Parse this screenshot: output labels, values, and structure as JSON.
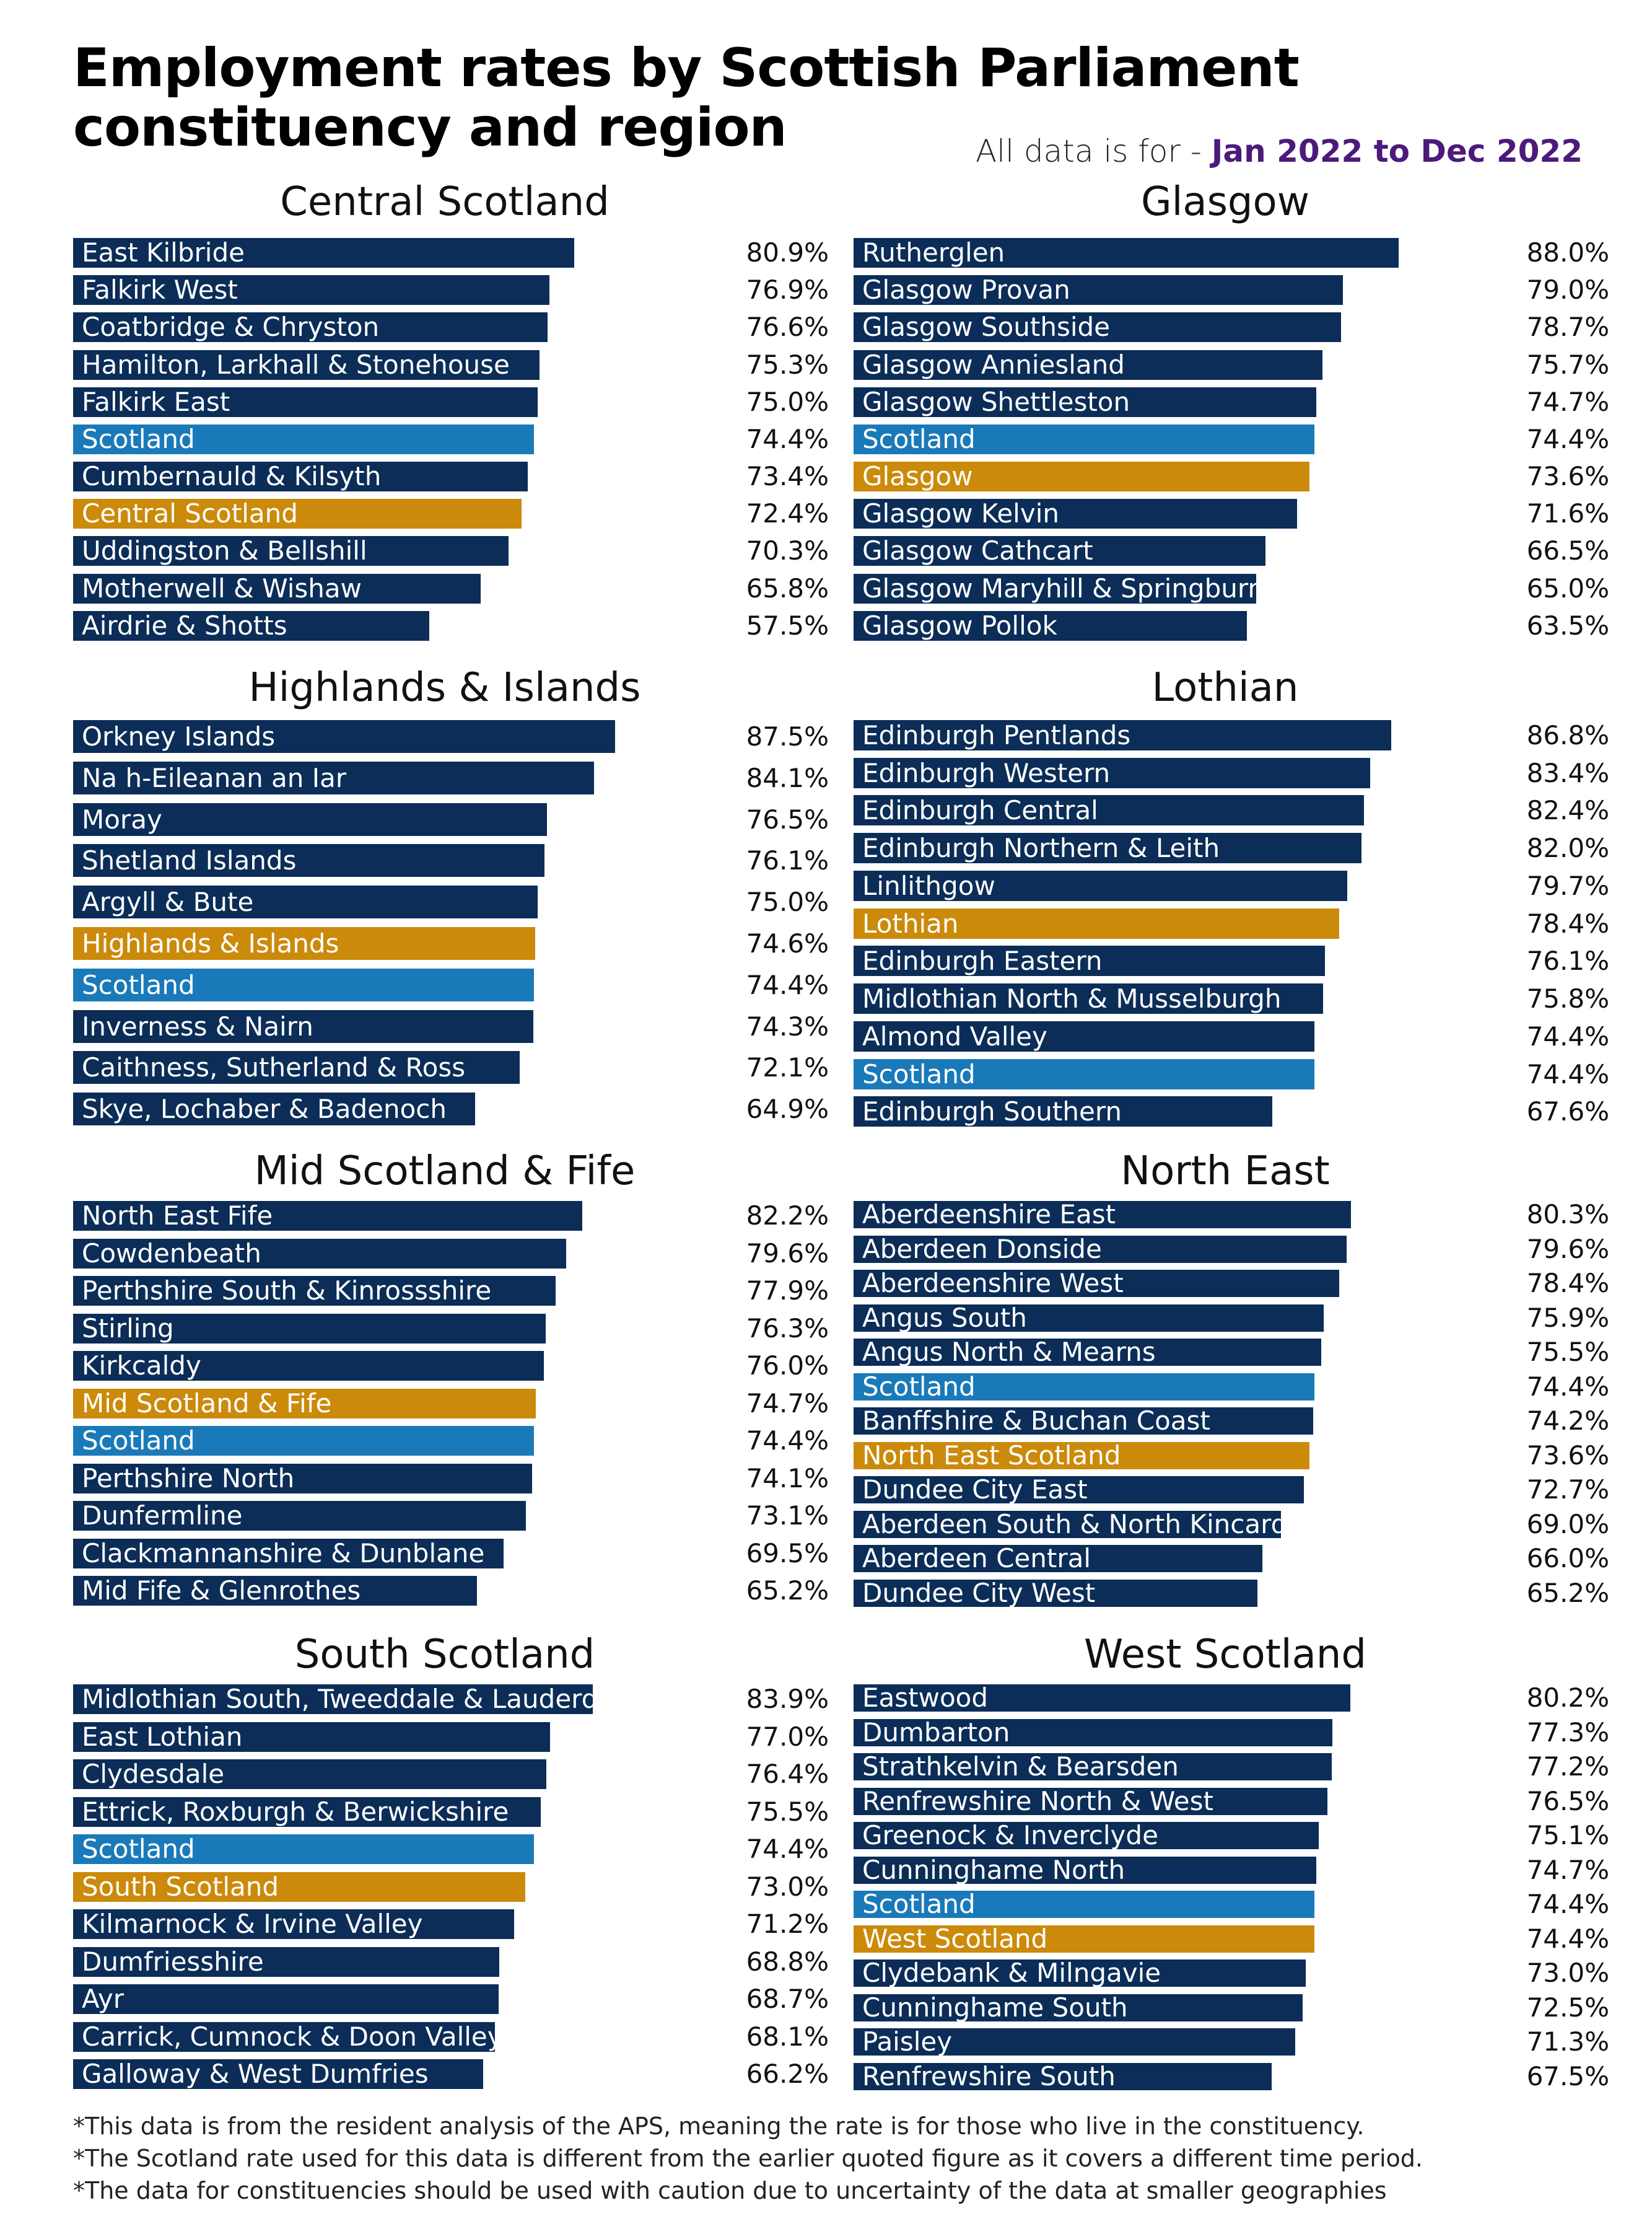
{
  "title": "Employment rates by Scottish Parliament constituency and region",
  "period_prefix": "All data is for -",
  "period_range": "Jan 2022 to Dec 2022",
  "colors": {
    "constituency": "#0b2d57",
    "scotland": "#1a7ab9",
    "region": "#cc8a0a"
  },
  "notes": [
    "*This data is from the resident analysis of the APS, meaning the rate is for those who live in the constituency.",
    "*The Scotland rate used for this data is different from the earlier quoted figure as it covers a different time period.",
    "*The data for constituencies should be used with caution due to uncertainty of the data at smaller geographies"
  ],
  "chart_data": [
    {
      "type": "bar",
      "title": "Central Scotland",
      "xlim": [
        0,
        100
      ],
      "unit": "%",
      "items": [
        {
          "label": "East Kilbride",
          "value": 80.9,
          "display": "80.9%",
          "kind": "constituency"
        },
        {
          "label": "Falkirk West",
          "value": 76.9,
          "display": "76.9%",
          "kind": "constituency"
        },
        {
          "label": "Coatbridge & Chryston",
          "value": 76.6,
          "display": "76.6%",
          "kind": "constituency"
        },
        {
          "label": "Hamilton, Larkhall & Stonehouse",
          "value": 75.3,
          "display": "75.3%",
          "kind": "constituency"
        },
        {
          "label": "Falkirk East",
          "value": 75.0,
          "display": "75.0%",
          "kind": "constituency"
        },
        {
          "label": "Scotland",
          "value": 74.4,
          "display": "74.4%",
          "kind": "scotland"
        },
        {
          "label": "Cumbernauld & Kilsyth",
          "value": 73.4,
          "display": "73.4%",
          "kind": "constituency"
        },
        {
          "label": "Central Scotland",
          "value": 72.4,
          "display": "72.4%",
          "kind": "region"
        },
        {
          "label": "Uddingston & Bellshill",
          "value": 70.3,
          "display": "70.3%",
          "kind": "constituency"
        },
        {
          "label": "Motherwell & Wishaw",
          "value": 65.8,
          "display": "65.8%",
          "kind": "constituency"
        },
        {
          "label": "Airdrie & Shotts",
          "value": 57.5,
          "display": "57.5%",
          "kind": "constituency"
        }
      ]
    },
    {
      "type": "bar",
      "title": "Glasgow",
      "xlim": [
        0,
        100
      ],
      "unit": "%",
      "items": [
        {
          "label": "Rutherglen",
          "value": 88.0,
          "display": "88.0%",
          "kind": "constituency"
        },
        {
          "label": "Glasgow Provan",
          "value": 79.0,
          "display": "79.0%",
          "kind": "constituency"
        },
        {
          "label": "Glasgow Southside",
          "value": 78.7,
          "display": "78.7%",
          "kind": "constituency"
        },
        {
          "label": "Glasgow Anniesland",
          "value": 75.7,
          "display": "75.7%",
          "kind": "constituency"
        },
        {
          "label": "Glasgow Shettleston",
          "value": 74.7,
          "display": "74.7%",
          "kind": "constituency"
        },
        {
          "label": "Scotland",
          "value": 74.4,
          "display": "74.4%",
          "kind": "scotland"
        },
        {
          "label": "Glasgow",
          "value": 73.6,
          "display": "73.6%",
          "kind": "region"
        },
        {
          "label": "Glasgow Kelvin",
          "value": 71.6,
          "display": "71.6%",
          "kind": "constituency"
        },
        {
          "label": "Glasgow Cathcart",
          "value": 66.5,
          "display": "66.5%",
          "kind": "constituency"
        },
        {
          "label": "Glasgow Maryhill & Springburn",
          "value": 65.0,
          "display": "65.0%",
          "kind": "constituency"
        },
        {
          "label": "Glasgow Pollok",
          "value": 63.5,
          "display": "63.5%",
          "kind": "constituency"
        }
      ]
    },
    {
      "type": "bar",
      "title": "Highlands & Islands",
      "xlim": [
        0,
        100
      ],
      "unit": "%",
      "items": [
        {
          "label": "Orkney Islands",
          "value": 87.5,
          "display": "87.5%",
          "kind": "constituency"
        },
        {
          "label": "Na h-Eileanan an Iar",
          "value": 84.1,
          "display": "84.1%",
          "kind": "constituency"
        },
        {
          "label": "Moray",
          "value": 76.5,
          "display": "76.5%",
          "kind": "constituency"
        },
        {
          "label": "Shetland Islands",
          "value": 76.1,
          "display": "76.1%",
          "kind": "constituency"
        },
        {
          "label": "Argyll & Bute",
          "value": 75.0,
          "display": "75.0%",
          "kind": "constituency"
        },
        {
          "label": "Highlands & Islands",
          "value": 74.6,
          "display": "74.6%",
          "kind": "region"
        },
        {
          "label": "Scotland",
          "value": 74.4,
          "display": "74.4%",
          "kind": "scotland"
        },
        {
          "label": "Inverness & Nairn",
          "value": 74.3,
          "display": "74.3%",
          "kind": "constituency"
        },
        {
          "label": "Caithness, Sutherland & Ross",
          "value": 72.1,
          "display": "72.1%",
          "kind": "constituency"
        },
        {
          "label": "Skye, Lochaber & Badenoch",
          "value": 64.9,
          "display": "64.9%",
          "kind": "constituency"
        }
      ]
    },
    {
      "type": "bar",
      "title": "Lothian",
      "xlim": [
        0,
        100
      ],
      "unit": "%",
      "items": [
        {
          "label": "Edinburgh Pentlands",
          "value": 86.8,
          "display": "86.8%",
          "kind": "constituency"
        },
        {
          "label": "Edinburgh Western",
          "value": 83.4,
          "display": "83.4%",
          "kind": "constituency"
        },
        {
          "label": "Edinburgh Central",
          "value": 82.4,
          "display": "82.4%",
          "kind": "constituency"
        },
        {
          "label": "Edinburgh Northern & Leith",
          "value": 82.0,
          "display": "82.0%",
          "kind": "constituency"
        },
        {
          "label": "Linlithgow",
          "value": 79.7,
          "display": "79.7%",
          "kind": "constituency"
        },
        {
          "label": "Lothian",
          "value": 78.4,
          "display": "78.4%",
          "kind": "region"
        },
        {
          "label": "Edinburgh Eastern",
          "value": 76.1,
          "display": "76.1%",
          "kind": "constituency"
        },
        {
          "label": "Midlothian North & Musselburgh",
          "value": 75.8,
          "display": "75.8%",
          "kind": "constituency"
        },
        {
          "label": "Almond Valley",
          "value": 74.4,
          "display": "74.4%",
          "kind": "constituency"
        },
        {
          "label": "Scotland",
          "value": 74.4,
          "display": "74.4%",
          "kind": "scotland"
        },
        {
          "label": "Edinburgh Southern",
          "value": 67.6,
          "display": "67.6%",
          "kind": "constituency"
        }
      ]
    },
    {
      "type": "bar",
      "title": "Mid Scotland & Fife",
      "xlim": [
        0,
        100
      ],
      "unit": "%",
      "items": [
        {
          "label": "North East Fife",
          "value": 82.2,
          "display": "82.2%",
          "kind": "constituency"
        },
        {
          "label": "Cowdenbeath",
          "value": 79.6,
          "display": "79.6%",
          "kind": "constituency"
        },
        {
          "label": "Perthshire South & Kinrossshire",
          "value": 77.9,
          "display": "77.9%",
          "kind": "constituency"
        },
        {
          "label": "Stirling",
          "value": 76.3,
          "display": "76.3%",
          "kind": "constituency"
        },
        {
          "label": "Kirkcaldy",
          "value": 76.0,
          "display": "76.0%",
          "kind": "constituency"
        },
        {
          "label": "Mid Scotland & Fife",
          "value": 74.7,
          "display": "74.7%",
          "kind": "region"
        },
        {
          "label": "Scotland",
          "value": 74.4,
          "display": "74.4%",
          "kind": "scotland"
        },
        {
          "label": "Perthshire North",
          "value": 74.1,
          "display": "74.1%",
          "kind": "constituency"
        },
        {
          "label": "Dunfermline",
          "value": 73.1,
          "display": "73.1%",
          "kind": "constituency"
        },
        {
          "label": "Clackmannanshire & Dunblane",
          "value": 69.5,
          "display": "69.5%",
          "kind": "constituency"
        },
        {
          "label": "Mid Fife & Glenrothes",
          "value": 65.2,
          "display": "65.2%",
          "kind": "constituency"
        }
      ]
    },
    {
      "type": "bar",
      "title": "North East",
      "xlim": [
        0,
        100
      ],
      "unit": "%",
      "items": [
        {
          "label": "Aberdeenshire East",
          "value": 80.3,
          "display": "80.3%",
          "kind": "constituency"
        },
        {
          "label": "Aberdeen Donside",
          "value": 79.6,
          "display": "79.6%",
          "kind": "constituency"
        },
        {
          "label": "Aberdeenshire West",
          "value": 78.4,
          "display": "78.4%",
          "kind": "constituency"
        },
        {
          "label": "Angus South",
          "value": 75.9,
          "display": "75.9%",
          "kind": "constituency"
        },
        {
          "label": "Angus North & Mearns",
          "value": 75.5,
          "display": "75.5%",
          "kind": "constituency"
        },
        {
          "label": "Scotland",
          "value": 74.4,
          "display": "74.4%",
          "kind": "scotland"
        },
        {
          "label": "Banffshire & Buchan Coast",
          "value": 74.2,
          "display": "74.2%",
          "kind": "constituency"
        },
        {
          "label": "North East Scotland",
          "value": 73.6,
          "display": "73.6%",
          "kind": "region"
        },
        {
          "label": "Dundee City East",
          "value": 72.7,
          "display": "72.7%",
          "kind": "constituency"
        },
        {
          "label": "Aberdeen South & North Kincardine",
          "value": 69.0,
          "display": "69.0%",
          "kind": "constituency"
        },
        {
          "label": "Aberdeen Central",
          "value": 66.0,
          "display": "66.0%",
          "kind": "constituency"
        },
        {
          "label": "Dundee City West",
          "value": 65.2,
          "display": "65.2%",
          "kind": "constituency"
        }
      ]
    },
    {
      "type": "bar",
      "title": "South Scotland",
      "xlim": [
        0,
        100
      ],
      "unit": "%",
      "items": [
        {
          "label": "Midlothian South, Tweeddale & Lauderdale",
          "value": 83.9,
          "display": "83.9%",
          "kind": "constituency"
        },
        {
          "label": "East Lothian",
          "value": 77.0,
          "display": "77.0%",
          "kind": "constituency"
        },
        {
          "label": "Clydesdale",
          "value": 76.4,
          "display": "76.4%",
          "kind": "constituency"
        },
        {
          "label": "Ettrick, Roxburgh & Berwickshire",
          "value": 75.5,
          "display": "75.5%",
          "kind": "constituency"
        },
        {
          "label": "Scotland",
          "value": 74.4,
          "display": "74.4%",
          "kind": "scotland"
        },
        {
          "label": "South Scotland",
          "value": 73.0,
          "display": "73.0%",
          "kind": "region"
        },
        {
          "label": "Kilmarnock & Irvine Valley",
          "value": 71.2,
          "display": "71.2%",
          "kind": "constituency"
        },
        {
          "label": "Dumfriesshire",
          "value": 68.8,
          "display": "68.8%",
          "kind": "constituency"
        },
        {
          "label": "Ayr",
          "value": 68.7,
          "display": "68.7%",
          "kind": "constituency"
        },
        {
          "label": "Carrick, Cumnock & Doon Valley",
          "value": 68.1,
          "display": "68.1%",
          "kind": "constituency"
        },
        {
          "label": "Galloway & West Dumfries",
          "value": 66.2,
          "display": "66.2%",
          "kind": "constituency"
        }
      ]
    },
    {
      "type": "bar",
      "title": "West Scotland",
      "xlim": [
        0,
        100
      ],
      "unit": "%",
      "items": [
        {
          "label": "Eastwood",
          "value": 80.2,
          "display": "80.2%",
          "kind": "constituency"
        },
        {
          "label": "Dumbarton",
          "value": 77.3,
          "display": "77.3%",
          "kind": "constituency"
        },
        {
          "label": "Strathkelvin & Bearsden",
          "value": 77.2,
          "display": "77.2%",
          "kind": "constituency"
        },
        {
          "label": "Renfrewshire North & West",
          "value": 76.5,
          "display": "76.5%",
          "kind": "constituency"
        },
        {
          "label": "Greenock & Inverclyde",
          "value": 75.1,
          "display": "75.1%",
          "kind": "constituency"
        },
        {
          "label": "Cunninghame North",
          "value": 74.7,
          "display": "74.7%",
          "kind": "constituency"
        },
        {
          "label": "Scotland",
          "value": 74.4,
          "display": "74.4%",
          "kind": "scotland"
        },
        {
          "label": "West Scotland",
          "value": 74.4,
          "display": "74.4%",
          "kind": "region"
        },
        {
          "label": "Clydebank & Milngavie",
          "value": 73.0,
          "display": "73.0%",
          "kind": "constituency"
        },
        {
          "label": "Cunninghame South",
          "value": 72.5,
          "display": "72.5%",
          "kind": "constituency"
        },
        {
          "label": "Paisley",
          "value": 71.3,
          "display": "71.3%",
          "kind": "constituency"
        },
        {
          "label": "Renfrewshire South",
          "value": 67.5,
          "display": "67.5%",
          "kind": "constituency"
        }
      ]
    }
  ]
}
